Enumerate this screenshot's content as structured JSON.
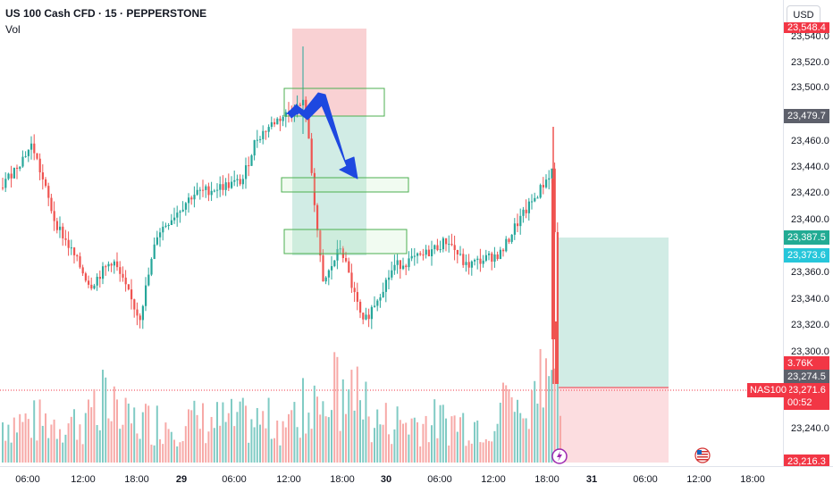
{
  "header": {
    "title": "US 100 Cash CFD · 15 · PEPPERSTONE",
    "volume_label": "Vol"
  },
  "currency": "USD",
  "price_axis": {
    "ticks": [
      "23,520.0",
      "23,500.0",
      "23,460.0",
      "23,440.0",
      "23,420.0",
      "23,400.0",
      "23,360.0",
      "23,340.0",
      "23,320.0",
      "23,240.0"
    ],
    "partial_top": "23,540.0",
    "partial_bottom": "23,300.0"
  },
  "price_tags": {
    "top": "23,548.4",
    "level_1": "23,479.7",
    "level_2": "23,387.5",
    "level_3": "23,373.6",
    "volume": "3.76K",
    "level_4": "23,274.5",
    "current": "23,271.6",
    "countdown": "00:52",
    "bottom": "23,216.3"
  },
  "symbol_tag": "NAS100",
  "time_axis": [
    {
      "label": "06:00",
      "bold": false
    },
    {
      "label": "12:00",
      "bold": false
    },
    {
      "label": "18:00",
      "bold": false
    },
    {
      "label": "29",
      "bold": true
    },
    {
      "label": "06:00",
      "bold": false
    },
    {
      "label": "12:00",
      "bold": false
    },
    {
      "label": "18:00",
      "bold": false
    },
    {
      "label": "30",
      "bold": true
    },
    {
      "label": "06:00",
      "bold": false
    },
    {
      "label": "12:00",
      "bold": false
    },
    {
      "label": "18:00",
      "bold": false
    },
    {
      "label": "31",
      "bold": true
    },
    {
      "label": "06:00",
      "bold": false
    },
    {
      "label": "12:00",
      "bold": false
    },
    {
      "label": "18:00",
      "bold": false
    }
  ],
  "colors": {
    "up": "#26a69a",
    "down": "#ef5350",
    "zone_border": "#4caf50",
    "arrow": "#1e48e0",
    "short_zone": "#f7c5c8",
    "target_zone": "#c6e7df",
    "bottom_zone": "#fbd5d8"
  },
  "icons": {
    "event_marker": "lightning-icon",
    "flag_marker": "us-flag-icon"
  }
}
